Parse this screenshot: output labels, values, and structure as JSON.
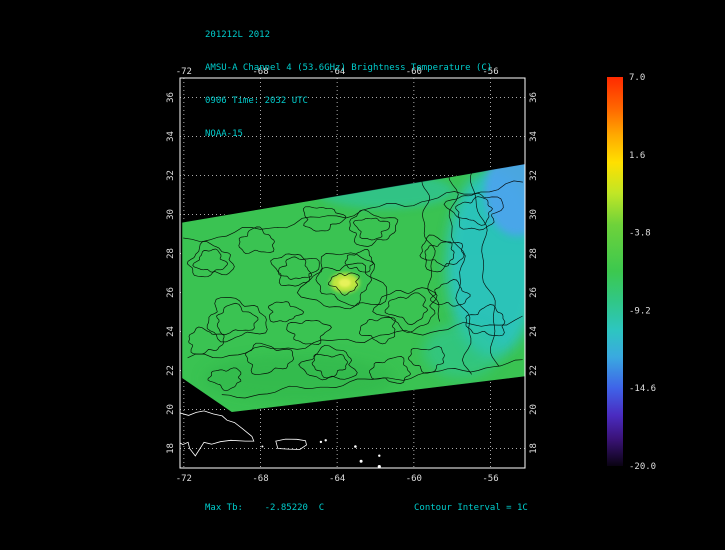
{
  "title_block": {
    "line1": "201212L 2012",
    "line2": "AMSU-A Channel 4 (53.6GHz) Brightness Temperature (C)",
    "line3": "0906 Time: 2032 UTC",
    "line4": "NOAA-15"
  },
  "footer": {
    "max_tb": "Max Tb:    -2.85220  C",
    "contour_interval": "Contour Interval = 1C"
  },
  "colors": {
    "background": "#000000",
    "title_text": "#00cccc",
    "axis_text": "#dddddd",
    "grid": "#c8c8c8",
    "box": "#ffffff",
    "coastline": "#ffffff",
    "swath_base": "#3ac352",
    "contour": "#000000"
  },
  "chart_data": {
    "type": "heatmap",
    "title": "AMSU-A Channel 4 (53.6GHz) Brightness Temperature (C)",
    "storm_id": "201212L 2012",
    "time": "0906 Time: 2032 UTC",
    "satellite": "NOAA-15",
    "units": "C",
    "max_tb_c": -2.8522,
    "contour_interval_c": 1,
    "x_axis": {
      "label": "",
      "range": [
        -72.2,
        -54.2
      ],
      "ticks": [
        -72,
        -68,
        -64,
        -60,
        -56
      ]
    },
    "y_axis": {
      "label": "",
      "range": [
        17,
        37
      ],
      "ticks": [
        18,
        20,
        22,
        24,
        26,
        28,
        30,
        32,
        34,
        36
      ]
    },
    "grid": true,
    "legend_position": "right",
    "colorbar": {
      "min": -20.0,
      "max": 7.0,
      "tick_values": [
        7.0,
        1.6,
        -3.8,
        -9.2,
        -14.6,
        -20.0
      ],
      "tick_labels": [
        "7.0",
        "1.6",
        "-3.8",
        "-9.2",
        "-14.6",
        "-20.0"
      ],
      "stops": [
        [
          0.0,
          "#ff2a00"
        ],
        [
          0.08,
          "#ff6600"
        ],
        [
          0.15,
          "#ffaa00"
        ],
        [
          0.22,
          "#ffe000"
        ],
        [
          0.3,
          "#bfe626"
        ],
        [
          0.38,
          "#6ed23a"
        ],
        [
          0.5,
          "#3cc84f"
        ],
        [
          0.58,
          "#30c789"
        ],
        [
          0.65,
          "#2dc6c0"
        ],
        [
          0.72,
          "#3aa9e0"
        ],
        [
          0.8,
          "#3f63e8"
        ],
        [
          0.87,
          "#4a2bc0"
        ],
        [
          0.93,
          "#3a1378"
        ],
        [
          1.0,
          "#0a0312"
        ]
      ]
    },
    "swath_polygon_lonlat": [
      [
        -72.1,
        29.6
      ],
      [
        -54.1,
        32.6
      ],
      [
        -54.1,
        21.7
      ],
      [
        -69.5,
        19.85
      ],
      [
        -72.1,
        21.6
      ]
    ],
    "regions": [
      {
        "lon": -55.9,
        "lat": 27.5,
        "rx": 2.4,
        "ry": 4.8,
        "color": "#2cc4c4",
        "opacity": 0.9,
        "blur": 6
      },
      {
        "lon": -54.6,
        "lat": 31.2,
        "rx": 1.7,
        "ry": 2.3,
        "color": "#4da3ef",
        "opacity": 0.9,
        "blur": 4
      },
      {
        "lon": -61.5,
        "lat": 31.2,
        "rx": 3.6,
        "ry": 0.9,
        "color": "#2cc4b0",
        "opacity": 0.55,
        "blur": 4
      },
      {
        "lon": -57.5,
        "lat": 23.0,
        "rx": 2.0,
        "ry": 1.4,
        "color": "#2fc79a",
        "opacity": 0.6,
        "blur": 6
      },
      {
        "lon": -66.0,
        "lat": 21.6,
        "rx": 5.0,
        "ry": 1.2,
        "color": "#2eb449",
        "opacity": 0.5,
        "blur": 6
      },
      {
        "lon": -63.6,
        "lat": 26.5,
        "rx": 0.75,
        "ry": 0.5,
        "color": "#c9e83e",
        "opacity": 0.95,
        "blur": 2
      },
      {
        "lon": -63.6,
        "lat": 26.5,
        "rx": 0.32,
        "ry": 0.22,
        "color": "#e6f25a",
        "opacity": 1,
        "blur": 1
      }
    ],
    "contour_blobs": [
      [
        -70.6,
        27.6,
        1.1,
        0.8,
        2
      ],
      [
        -69.3,
        24.6,
        1.5,
        1.0,
        2
      ],
      [
        -68.2,
        28.6,
        0.9,
        0.6,
        1
      ],
      [
        -66.2,
        27.2,
        1.1,
        0.8,
        2
      ],
      [
        -63.6,
        26.5,
        2.0,
        1.4,
        3
      ],
      [
        -64.8,
        29.8,
        1.0,
        0.6,
        1
      ],
      [
        -62.2,
        29.3,
        1.2,
        0.8,
        2
      ],
      [
        -60.3,
        25.2,
        1.5,
        1.0,
        2
      ],
      [
        -58.6,
        28.0,
        1.1,
        0.8,
        2
      ],
      [
        -56.8,
        30.2,
        1.3,
        0.9,
        2
      ],
      [
        -56.2,
        24.5,
        1.0,
        0.7,
        1
      ],
      [
        -67.6,
        22.6,
        1.2,
        0.7,
        1
      ],
      [
        -64.4,
        22.3,
        1.3,
        0.8,
        2
      ],
      [
        -61.2,
        22.0,
        1.0,
        0.6,
        1
      ],
      [
        -69.8,
        21.6,
        0.8,
        0.5,
        1
      ],
      [
        -59.3,
        22.6,
        0.9,
        0.6,
        1
      ],
      [
        -66.8,
        25.0,
        0.8,
        0.5,
        1
      ],
      [
        -61.8,
        24.1,
        0.9,
        0.6,
        1
      ],
      [
        -58.1,
        25.9,
        0.9,
        0.6,
        1
      ],
      [
        -70.9,
        23.5,
        0.9,
        0.6,
        1
      ],
      [
        -65.5,
        24.0,
        1.0,
        0.6,
        1
      ],
      [
        -62.8,
        27.6,
        0.7,
        0.5,
        1
      ]
    ],
    "contour_lines": [
      {
        "from": [
          -58.2,
          32.3
        ],
        "to": [
          -57.0,
          21.8
        ],
        "amp": 5,
        "waves": 3
      },
      {
        "from": [
          -56.9,
          32.5
        ],
        "to": [
          -55.6,
          22.2
        ],
        "amp": 4,
        "waves": 2.5
      },
      {
        "from": [
          -59.6,
          32.1
        ],
        "to": [
          -58.8,
          24.5
        ],
        "amp": 4,
        "waves": 2.5
      },
      {
        "from": [
          -72.0,
          28.6
        ],
        "to": [
          -54.3,
          31.6
        ],
        "amp": 3,
        "waves": 5
      },
      {
        "from": [
          -71.8,
          22.6
        ],
        "to": [
          -54.3,
          24.6
        ],
        "amp": 3,
        "waves": 5
      },
      {
        "from": [
          -70.0,
          20.6
        ],
        "to": [
          -54.3,
          22.4
        ],
        "amp": 2.5,
        "waves": 4
      }
    ],
    "coastlines": [
      {
        "name": "hispaniola",
        "closed": true,
        "points": [
          [
            -72.3,
            19.85
          ],
          [
            -71.75,
            19.7
          ],
          [
            -71.35,
            19.85
          ],
          [
            -70.95,
            19.93
          ],
          [
            -70.45,
            19.77
          ],
          [
            -70.0,
            19.67
          ],
          [
            -69.75,
            19.45
          ],
          [
            -69.35,
            19.33
          ],
          [
            -68.95,
            19.02
          ],
          [
            -68.45,
            18.62
          ],
          [
            -68.35,
            18.38
          ],
          [
            -68.8,
            18.38
          ],
          [
            -69.55,
            18.42
          ],
          [
            -70.1,
            18.35
          ],
          [
            -70.55,
            18.22
          ],
          [
            -70.95,
            18.32
          ],
          [
            -71.1,
            18.08
          ],
          [
            -71.4,
            17.62
          ],
          [
            -71.7,
            18.0
          ],
          [
            -71.78,
            18.32
          ],
          [
            -72.05,
            18.2
          ],
          [
            -72.3,
            18.35
          ]
        ]
      },
      {
        "name": "puerto-rico",
        "closed": true,
        "points": [
          [
            -67.2,
            18.38
          ],
          [
            -66.7,
            18.48
          ],
          [
            -66.1,
            18.47
          ],
          [
            -65.65,
            18.4
          ],
          [
            -65.6,
            18.18
          ],
          [
            -65.95,
            17.95
          ],
          [
            -66.55,
            17.97
          ],
          [
            -67.1,
            18.0
          ]
        ]
      }
    ],
    "islands": [
      [
        -64.85,
        18.34,
        1.2
      ],
      [
        -64.6,
        18.42,
        1.2
      ],
      [
        -63.05,
        18.1,
        1.3
      ],
      [
        -62.75,
        17.35,
        1.5
      ],
      [
        -61.8,
        17.07,
        1.6
      ],
      [
        -61.8,
        17.63,
        1.2
      ],
      [
        -62.2,
        16.75,
        1.2
      ],
      [
        -61.55,
        16.3,
        2.0
      ],
      [
        -67.9,
        18.1,
        1.0
      ]
    ]
  }
}
